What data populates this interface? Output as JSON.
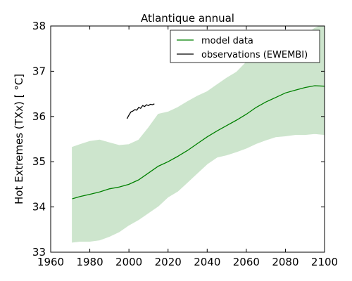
{
  "chart_data": {
    "type": "line",
    "title": "Atlantique annual",
    "xlabel": "",
    "ylabel": "Hot Extremes (TXx) [$^\\circ C$]",
    "ylabel_display": "Hot Extremes (TXx) [ °C]",
    "xlim": [
      1960,
      2100
    ],
    "ylim": [
      33,
      38
    ],
    "xticks": [
      1960,
      1980,
      2000,
      2020,
      2040,
      2060,
      2080,
      2100
    ],
    "yticks": [
      33,
      34,
      35,
      36,
      37,
      38
    ],
    "grid": false,
    "legend_position": "top-right",
    "series": [
      {
        "name": "model data",
        "color": "#008000",
        "band_color": "#cde5cd",
        "x": [
          1971,
          1975,
          1980,
          1985,
          1990,
          1995,
          2000,
          2005,
          2010,
          2015,
          2020,
          2025,
          2030,
          2035,
          2040,
          2045,
          2050,
          2055,
          2060,
          2065,
          2070,
          2075,
          2080,
          2085,
          2090,
          2095,
          2100
        ],
        "values": [
          34.18,
          34.23,
          34.28,
          34.33,
          34.4,
          34.44,
          34.5,
          34.6,
          34.75,
          34.9,
          35.0,
          35.12,
          35.25,
          35.4,
          35.55,
          35.68,
          35.8,
          35.92,
          36.05,
          36.2,
          36.32,
          36.42,
          36.52,
          36.58,
          36.64,
          36.68,
          36.67
        ],
        "lower": [
          33.22,
          33.24,
          33.24,
          33.27,
          33.35,
          33.45,
          33.6,
          33.72,
          33.87,
          34.02,
          34.22,
          34.35,
          34.55,
          34.75,
          34.95,
          35.1,
          35.15,
          35.22,
          35.3,
          35.4,
          35.48,
          35.55,
          35.57,
          35.6,
          35.6,
          35.62,
          35.6
        ],
        "upper": [
          35.32,
          35.38,
          35.45,
          35.48,
          35.42,
          35.36,
          35.38,
          35.48,
          35.75,
          36.05,
          36.1,
          36.2,
          36.33,
          36.45,
          36.55,
          36.7,
          36.85,
          36.98,
          37.2,
          37.4,
          37.57,
          37.62,
          37.7,
          37.75,
          37.8,
          37.95,
          38.05
        ]
      },
      {
        "name": "observations (EWEMBI)",
        "color": "#000000",
        "x": [
          1999,
          2000,
          2001,
          2002,
          2003,
          2004,
          2005,
          2006,
          2007,
          2008,
          2009,
          2010,
          2011,
          2012,
          2013
        ],
        "values": [
          35.95,
          36.03,
          36.1,
          36.12,
          36.15,
          36.14,
          36.2,
          36.18,
          36.24,
          36.22,
          36.26,
          36.24,
          36.27,
          36.26,
          36.28
        ]
      }
    ]
  }
}
